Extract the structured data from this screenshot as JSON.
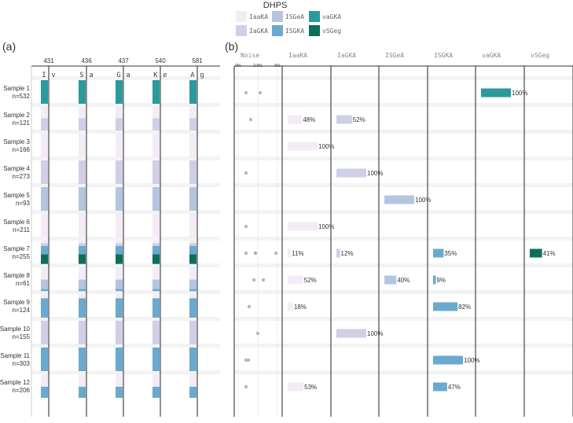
{
  "legend": {
    "title": "DHPS",
    "items": [
      {
        "name": "IaaKA",
        "color": "#f4ecf5"
      },
      {
        "name": "ISGeA",
        "color": "#b3c5df"
      },
      {
        "name": "vaGKA",
        "color": "#2a9a9c"
      },
      {
        "name": "IaGKA",
        "color": "#cfcfe6"
      },
      {
        "name": "ISGKA",
        "color": "#6ba9cf"
      },
      {
        "name": "vSGeg",
        "color": "#0e6e5c"
      }
    ]
  },
  "panels": {
    "a": "(a)",
    "b": "(b)"
  },
  "chart_data": [
    {
      "type": "heatmap",
      "panel": "(a)",
      "positions": [
        "431",
        "436",
        "437",
        "540",
        "581"
      ],
      "reference_alleles": [
        [
          "I",
          "v"
        ],
        [
          "S",
          "a"
        ],
        [
          "G",
          "a"
        ],
        [
          "K",
          "e"
        ],
        [
          "A",
          "g"
        ]
      ],
      "samples": [
        {
          "label": "Sample 1",
          "n": "n=532"
        },
        {
          "label": "Sample 2",
          "n": "n=121"
        },
        {
          "label": "Sample 3",
          "n": "n=166"
        },
        {
          "label": "Sample 4",
          "n": "n=273"
        },
        {
          "label": "Sample 5",
          "n": "n=93"
        },
        {
          "label": "Sample 6",
          "n": "n=211"
        },
        {
          "label": "Sample 7",
          "n": "n=255"
        },
        {
          "label": "Sample 8",
          "n": "n=61"
        },
        {
          "label": "Sample 9",
          "n": "n=124"
        },
        {
          "label": "Sample 10",
          "n": "n=155"
        },
        {
          "label": "Sample 11",
          "n": "n=303"
        },
        {
          "label": "Sample 12",
          "n": "n=206"
        }
      ],
      "sample_composition": [
        {
          "vaGKA": 1.0
        },
        {
          "IaaKA": 0.48,
          "IaGKA": 0.52
        },
        {
          "IaaKA": 1.0
        },
        {
          "IaGKA": 1.0
        },
        {
          "ISGeA": 1.0
        },
        {
          "IaaKA": 1.0
        },
        {
          "IaaKA": 0.11,
          "IaGKA": 0.12,
          "ISGKA": 0.35,
          "vSGeg": 0.41
        },
        {
          "IaaKA": 0.52,
          "ISGeA": 0.4,
          "ISGKA": 0.09
        },
        {
          "IaaKA": 0.18,
          "ISGKA": 0.82
        },
        {
          "IaGKA": 1.0
        },
        {
          "ISGKA": 1.0
        },
        {
          "IaaKA": 0.53,
          "ISGKA": 0.47
        }
      ]
    },
    {
      "type": "bar",
      "panel": "(b)",
      "columns": [
        "Noise",
        "IaaKA",
        "IaGKA",
        "ISGeA",
        "ISGKA",
        "vaGKA",
        "vSGeg"
      ],
      "noise_axis_ticks": [
        "0%",
        "2.5%",
        "5%"
      ],
      "noise_points": [
        [
          1.0,
          2.8
        ],
        [
          1.6
        ],
        [],
        [
          1.0
        ],
        [],
        [
          1.0
        ],
        [
          1.0,
          2.2,
          4.8
        ],
        [
          2.0,
          3.2
        ],
        [
          1.4
        ],
        [
          2.5
        ],
        [
          1.0,
          1.3
        ],
        [
          1.0
        ]
      ],
      "bars": [
        [
          {
            "type": "vaGKA",
            "value": 100,
            "label": "100%"
          }
        ],
        [
          {
            "type": "IaaKA",
            "value": 48,
            "label": "48%"
          },
          {
            "type": "IaGKA",
            "value": 52,
            "label": "52%"
          }
        ],
        [
          {
            "type": "IaaKA",
            "value": 100,
            "label": "100%"
          }
        ],
        [
          {
            "type": "IaGKA",
            "value": 100,
            "label": "100%"
          }
        ],
        [
          {
            "type": "ISGeA",
            "value": 100,
            "label": "100%"
          }
        ],
        [
          {
            "type": "IaaKA",
            "value": 100,
            "label": "100%"
          }
        ],
        [
          {
            "type": "IaaKA",
            "value": 11,
            "label": "11%"
          },
          {
            "type": "IaGKA",
            "value": 12,
            "label": "12%"
          },
          {
            "type": "ISGKA",
            "value": 35,
            "label": "35%"
          },
          {
            "type": "vSGeg",
            "value": 41,
            "label": "41%"
          }
        ],
        [
          {
            "type": "IaaKA",
            "value": 52,
            "label": "52%"
          },
          {
            "type": "ISGeA",
            "value": 40,
            "label": "40%"
          },
          {
            "type": "ISGKA",
            "value": 9,
            "label": "9%"
          }
        ],
        [
          {
            "type": "IaaKA",
            "value": 18,
            "label": "18%"
          },
          {
            "type": "ISGKA",
            "value": 82,
            "label": "82%"
          }
        ],
        [
          {
            "type": "IaGKA",
            "value": 100,
            "label": "100%"
          }
        ],
        [
          {
            "type": "ISGKA",
            "value": 100,
            "label": "100%"
          }
        ],
        [
          {
            "type": "IaaKA",
            "value": 53,
            "label": "53%"
          },
          {
            "type": "ISGKA",
            "value": 47,
            "label": "47%"
          }
        ]
      ]
    }
  ]
}
